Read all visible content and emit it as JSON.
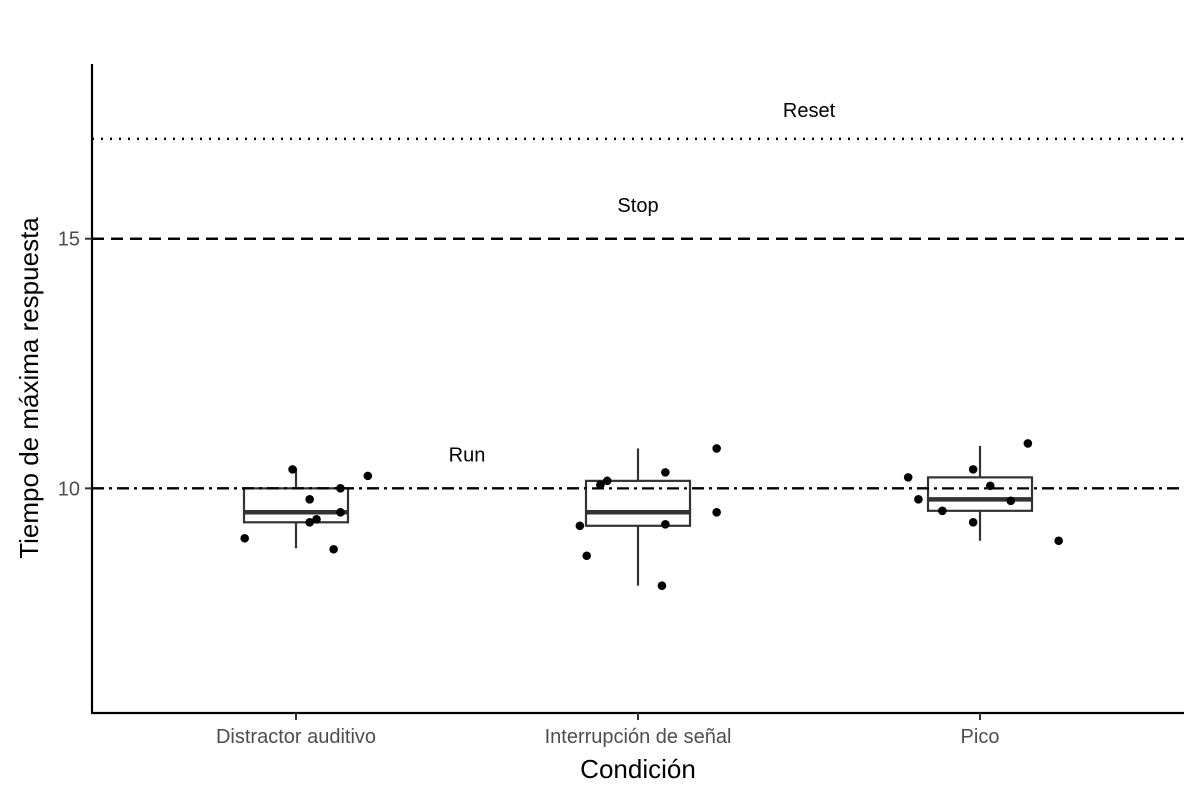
{
  "chart_data": {
    "type": "box",
    "xlabel": "Condición",
    "ylabel": "Tiempo de máxima respuesta",
    "categories": [
      "Distractor auditivo",
      "Interrupción de señal",
      "Pico"
    ],
    "ylim": [
      5.5,
      18.5
    ],
    "yticks": [
      10,
      15
    ],
    "grid": false,
    "boxes": [
      {
        "category": "Distractor auditivo",
        "min": 8.8,
        "q1": 9.32,
        "median": 9.52,
        "q3": 10.0,
        "max": 10.4
      },
      {
        "category": "Interrupción de señal",
        "min": 8.05,
        "q1": 9.25,
        "median": 9.52,
        "q3": 10.15,
        "max": 10.8
      },
      {
        "category": "Pico",
        "min": 8.95,
        "q1": 9.55,
        "median": 9.78,
        "q3": 10.22,
        "max": 10.85
      }
    ],
    "points": [
      {
        "category": "Distractor auditivo",
        "jitter": -0.01,
        "y": 10.38
      },
      {
        "category": "Distractor auditivo",
        "jitter": 0.21,
        "y": 10.25
      },
      {
        "category": "Distractor auditivo",
        "jitter": 0.13,
        "y": 10.0
      },
      {
        "category": "Distractor auditivo",
        "jitter": 0.04,
        "y": 9.78
      },
      {
        "category": "Distractor auditivo",
        "jitter": 0.13,
        "y": 9.52
      },
      {
        "category": "Distractor auditivo",
        "jitter": 0.06,
        "y": 9.38
      },
      {
        "category": "Distractor auditivo",
        "jitter": 0.04,
        "y": 9.32
      },
      {
        "category": "Distractor auditivo",
        "jitter": -0.15,
        "y": 9.0
      },
      {
        "category": "Distractor auditivo",
        "jitter": 0.11,
        "y": 8.78
      },
      {
        "category": "Interrupción de señal",
        "jitter": 0.23,
        "y": 10.8
      },
      {
        "category": "Interrupción de señal",
        "jitter": 0.08,
        "y": 10.32
      },
      {
        "category": "Interrupción de señal",
        "jitter": -0.09,
        "y": 10.15
      },
      {
        "category": "Interrupción de señal",
        "jitter": -0.11,
        "y": 10.07
      },
      {
        "category": "Interrupción de señal",
        "jitter": 0.23,
        "y": 9.52
      },
      {
        "category": "Interrupción de señal",
        "jitter": 0.08,
        "y": 9.28
      },
      {
        "category": "Interrupción de señal",
        "jitter": -0.17,
        "y": 9.25
      },
      {
        "category": "Interrupción de señal",
        "jitter": -0.15,
        "y": 8.65
      },
      {
        "category": "Interrupción de señal",
        "jitter": 0.07,
        "y": 8.05
      },
      {
        "category": "Pico",
        "jitter": 0.14,
        "y": 10.9
      },
      {
        "category": "Pico",
        "jitter": -0.02,
        "y": 10.38
      },
      {
        "category": "Pico",
        "jitter": -0.21,
        "y": 10.22
      },
      {
        "category": "Pico",
        "jitter": 0.03,
        "y": 10.05
      },
      {
        "category": "Pico",
        "jitter": -0.18,
        "y": 9.78
      },
      {
        "category": "Pico",
        "jitter": 0.09,
        "y": 9.75
      },
      {
        "category": "Pico",
        "jitter": -0.11,
        "y": 9.55
      },
      {
        "category": "Pico",
        "jitter": -0.02,
        "y": 9.32
      },
      {
        "category": "Pico",
        "jitter": 0.23,
        "y": 8.95
      }
    ],
    "reference_lines": [
      {
        "label": "Run",
        "y": 10,
        "linestyle": "dashdot",
        "label_x": 1.5,
        "label_y": 10.68
      },
      {
        "label": "Stop",
        "y": 15,
        "linestyle": "dashed",
        "label_x": 2.0,
        "label_y": 15.68
      },
      {
        "label": "Reset",
        "y": 17,
        "linestyle": "dotted",
        "label_x": 2.5,
        "label_y": 17.58
      }
    ]
  }
}
